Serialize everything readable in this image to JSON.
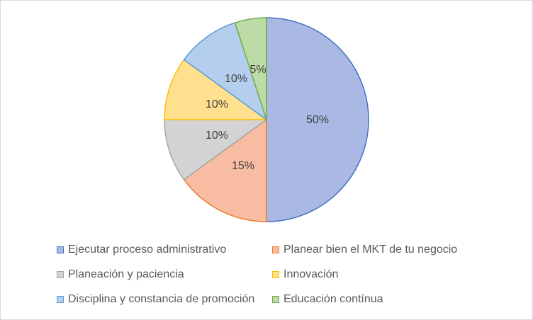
{
  "chart_data": {
    "type": "pie",
    "title": "",
    "slices": [
      {
        "label": "Ejecutar proceso administrativo",
        "value": 50,
        "display": "50%",
        "fill": "#a9b9e3",
        "edge": "#4472c4"
      },
      {
        "label": "Planear bien el MKT de tu negocio",
        "value": 15,
        "display": "15%",
        "fill": "#f8bca3",
        "edge": "#ed7d31"
      },
      {
        "label": "Planeación y paciencia",
        "value": 10,
        "display": "10%",
        "fill": "#d3d3d3",
        "edge": "#a5a5a5"
      },
      {
        "label": "Innovación",
        "value": 10,
        "display": "10%",
        "fill": "#ffe08f",
        "edge": "#ffc000"
      },
      {
        "label": "Disciplina y constancia de promoción",
        "value": 10,
        "display": "10%",
        "fill": "#b4cfee",
        "edge": "#5b9bd5"
      },
      {
        "label": "Educación contínua",
        "value": 5,
        "display": "5%",
        "fill": "#bcdba7",
        "edge": "#70ad47"
      }
    ],
    "legend_position": "bottom"
  }
}
